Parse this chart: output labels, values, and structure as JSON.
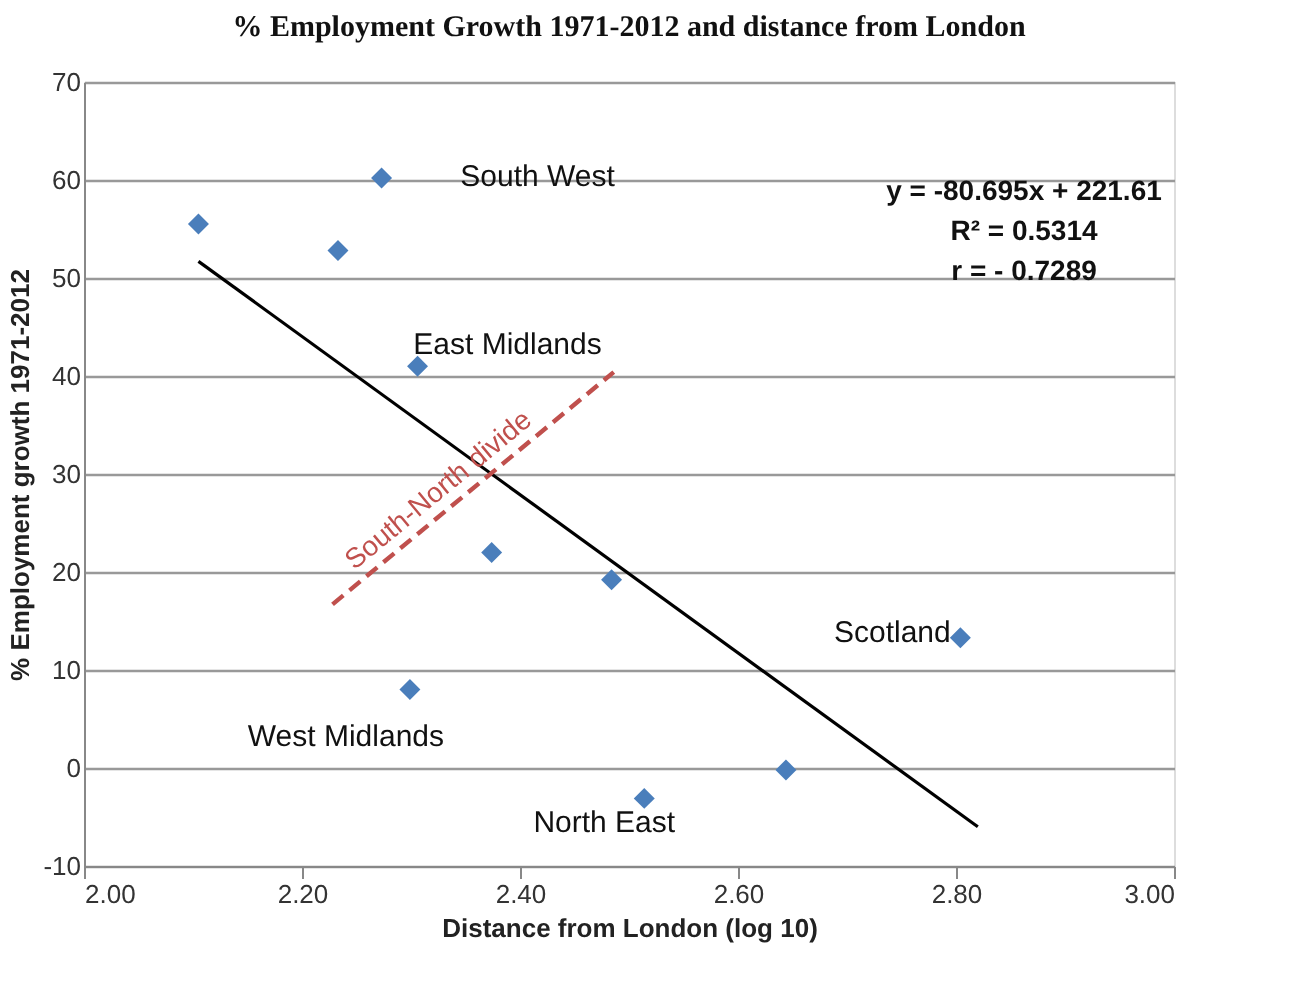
{
  "chart_data": {
    "type": "scatter",
    "title": "% Employment Growth 1971-2012 and distance from London",
    "xlabel": "Distance from London (log 10)",
    "ylabel": "% Employment growth 1971-2012",
    "series": [
      {
        "type": "scatter",
        "color": "#4a7ebb",
        "marker": "diamond",
        "x": [
          2.105,
          2.233,
          2.273,
          2.306,
          2.374,
          2.484,
          2.299,
          2.514,
          2.644,
          2.804
        ],
        "values": [
          55.5,
          52.8,
          60.2,
          41,
          22,
          19.2,
          8,
          -3.1,
          -0.2,
          13.3
        ]
      },
      {
        "type": "line",
        "color": "#000000",
        "line_style": "solid",
        "x": [
          2.105,
          2.82
        ],
        "values": [
          51.7,
          -6.0
        ]
      },
      {
        "type": "line",
        "name": "South-North divide",
        "color": "#c0504d",
        "line_style": "dashed",
        "x": [
          2.228,
          2.486
        ],
        "values": [
          16.7,
          40.4
        ]
      }
    ],
    "annotations": [
      {
        "text": "South West",
        "x": 2.273,
        "y": 60.2
      },
      {
        "text": "East Midlands",
        "x": 2.306,
        "y": 41
      },
      {
        "text": "West Midlands",
        "x": 2.299,
        "y": 8
      },
      {
        "text": "North East",
        "x": 2.514,
        "y": -3.1
      },
      {
        "text": "Scotland",
        "x": 2.804,
        "y": 13.3
      },
      "y = -80.695x + 221.61",
      "R² = 0.5314",
      "r = - 0.7289"
    ],
    "xlim": [
      2,
      3
    ],
    "ylim": [
      -10,
      70
    ],
    "xticks": [
      {
        "value": 2,
        "label": "2.00"
      },
      {
        "value": 2.2,
        "label": "2.20"
      },
      {
        "value": 2.4,
        "label": "2.40"
      },
      {
        "value": 2.6,
        "label": "2.60"
      },
      {
        "value": 2.8,
        "label": "2.80"
      },
      {
        "value": 3,
        "label": "3.00"
      }
    ],
    "yticks": [
      -10,
      0,
      10,
      20,
      30,
      40,
      50,
      60,
      70
    ],
    "grid": "y",
    "legend": false
  }
}
